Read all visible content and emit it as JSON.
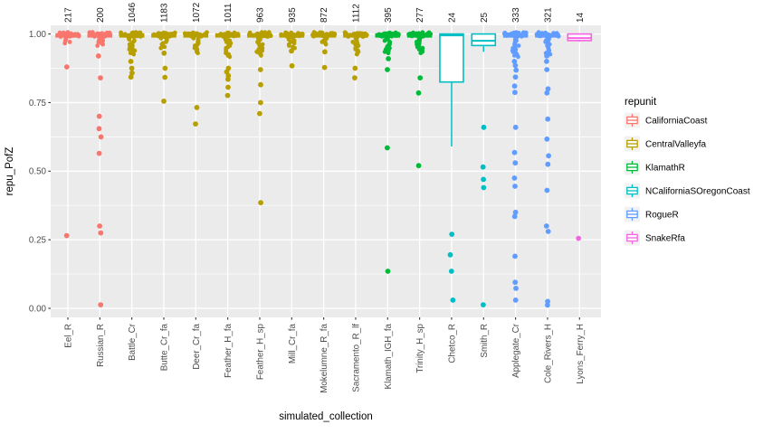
{
  "style": {
    "panel_bg": "#EBEBEB",
    "grid_color": "#FFFFFF",
    "axis_text_color": "#4D4D4D",
    "title_text_color": "#000000",
    "count_text_color": "#1A1A1A",
    "tick_color": "#333333",
    "legend_key_bg": "#F2F2F2",
    "box_fill": "#FFFFFF"
  },
  "chart_data": {
    "type": "boxplot",
    "title": "",
    "xlabel": "simulated_collection",
    "ylabel": "repu_PofZ",
    "ytick_labels": [
      "1.00",
      "0.75",
      "0.50",
      "0.25",
      "0.00"
    ],
    "ytick_values": [
      1.0,
      0.75,
      0.5,
      0.25,
      0.0
    ],
    "yminor_values": [
      0.875,
      0.625,
      0.375,
      0.125
    ],
    "ylim": [
      -0.033,
      1.032
    ],
    "grid": true,
    "legend_position": "right",
    "legend_title": "repunit",
    "repunits": [
      {
        "name": "CaliforniaCoast",
        "color": "#F8766D"
      },
      {
        "name": "CentralValleyfa",
        "color": "#B79F00"
      },
      {
        "name": "KlamathR",
        "color": "#00BA38"
      },
      {
        "name": "NCaliforniaSOregonCoast",
        "color": "#00BFC4"
      },
      {
        "name": "RogueR",
        "color": "#619CFF"
      },
      {
        "name": "SnakeRfa",
        "color": "#F564E2"
      }
    ],
    "columns": [
      {
        "label": "Eel_R",
        "count": 217,
        "repunit": "CaliforniaCoast",
        "box": {
          "lo": 0.988,
          "q1": 0.99,
          "med": 0.999,
          "q3": 1.0,
          "hi": 1.0
        },
        "cluster_to": 0.965,
        "outliers": [
          0.88,
          0.265
        ]
      },
      {
        "label": "Russian_R",
        "count": 200,
        "repunit": "CaliforniaCoast",
        "box": {
          "lo": 0.988,
          "q1": 0.99,
          "med": 0.999,
          "q3": 1.0,
          "hi": 1.0
        },
        "cluster_to": 0.955,
        "outliers": [
          0.92,
          0.84,
          0.7,
          0.655,
          0.625,
          0.565,
          0.3,
          0.275,
          0.013
        ]
      },
      {
        "label": "Battle_Cr",
        "count": 1046,
        "repunit": "CentralValleyfa",
        "box": {
          "lo": 0.988,
          "q1": 0.99,
          "med": 0.999,
          "q3": 1.0,
          "hi": 1.0
        },
        "cluster_to": 0.925,
        "outliers": [
          0.9,
          0.875,
          0.858,
          0.843
        ]
      },
      {
        "label": "Butte_Cr_fa",
        "count": 1183,
        "repunit": "CentralValleyfa",
        "box": {
          "lo": 0.988,
          "q1": 0.99,
          "med": 0.999,
          "q3": 1.0,
          "hi": 1.0
        },
        "cluster_to": 0.945,
        "outliers": [
          0.93,
          0.875,
          0.842,
          0.755
        ]
      },
      {
        "label": "Deer_Cr_fa",
        "count": 1072,
        "repunit": "CentralValleyfa",
        "box": {
          "lo": 0.988,
          "q1": 0.99,
          "med": 0.999,
          "q3": 1.0,
          "hi": 1.0
        },
        "cluster_to": 0.93,
        "outliers": [
          0.732,
          0.672
        ]
      },
      {
        "label": "Feather_H_fa",
        "count": 1011,
        "repunit": "CentralValleyfa",
        "box": {
          "lo": 0.988,
          "q1": 0.99,
          "med": 0.999,
          "q3": 1.0,
          "hi": 1.0
        },
        "cluster_to": 0.915,
        "outliers": [
          0.875,
          0.862,
          0.848,
          0.835,
          0.806,
          0.776
        ]
      },
      {
        "label": "Feather_H_sp",
        "count": 963,
        "repunit": "CentralValleyfa",
        "box": {
          "lo": 0.988,
          "q1": 0.99,
          "med": 0.999,
          "q3": 1.0,
          "hi": 1.0
        },
        "cluster_to": 0.92,
        "outliers": [
          0.87,
          0.815,
          0.75,
          0.71,
          0.385
        ]
      },
      {
        "label": "Mill_Cr_fa",
        "count": 935,
        "repunit": "CentralValleyfa",
        "box": {
          "lo": 0.988,
          "q1": 0.99,
          "med": 0.999,
          "q3": 1.0,
          "hi": 1.0
        },
        "cluster_to": 0.945,
        "outliers": [
          0.938,
          0.884
        ]
      },
      {
        "label": "Mokelumne_R_fa",
        "count": 872,
        "repunit": "CentralValleyfa",
        "box": {
          "lo": 0.988,
          "q1": 0.99,
          "med": 0.999,
          "q3": 1.0,
          "hi": 1.0
        },
        "cluster_to": 0.962,
        "outliers": [
          0.935,
          0.878
        ]
      },
      {
        "label": "Sacramento_R_lf",
        "count": 1112,
        "repunit": "CentralValleyfa",
        "box": {
          "lo": 0.988,
          "q1": 0.99,
          "med": 0.999,
          "q3": 1.0,
          "hi": 1.0
        },
        "cluster_to": 0.925,
        "outliers": [
          0.875,
          0.84
        ]
      },
      {
        "label": "Klamath_IGH_fa",
        "count": 395,
        "repunit": "KlamathR",
        "box": {
          "lo": 0.988,
          "q1": 0.99,
          "med": 0.999,
          "q3": 1.0,
          "hi": 1.0
        },
        "cluster_to": 0.93,
        "outliers": [
          0.91,
          0.87,
          0.585,
          0.135
        ]
      },
      {
        "label": "Trinity_H_sp",
        "count": 277,
        "repunit": "KlamathR",
        "box": {
          "lo": 0.988,
          "q1": 0.99,
          "med": 0.999,
          "q3": 1.0,
          "hi": 1.0
        },
        "cluster_to": 0.93,
        "outliers": [
          0.84,
          0.785,
          0.52
        ]
      },
      {
        "label": "Chetco_R",
        "count": 24,
        "repunit": "NCaliforniaSOregonCoast",
        "box": {
          "lo": 0.59,
          "q1": 0.825,
          "med": 0.995,
          "q3": 1.0,
          "hi": 1.0
        },
        "cluster_to": null,
        "outliers": [
          0.27,
          0.195,
          0.135,
          0.03
        ]
      },
      {
        "label": "Smith_R",
        "count": 25,
        "repunit": "NCaliforniaSOregonCoast",
        "box": {
          "lo": 0.935,
          "q1": 0.958,
          "med": 0.975,
          "q3": 1.0,
          "hi": 1.0
        },
        "cluster_to": null,
        "outliers": [
          0.66,
          0.515,
          0.47,
          0.44,
          0.013
        ]
      },
      {
        "label": "Applegate_Cr",
        "count": 333,
        "repunit": "RogueR",
        "box": {
          "lo": 0.988,
          "q1": 0.99,
          "med": 0.999,
          "q3": 1.0,
          "hi": 1.0
        },
        "cluster_to": 0.915,
        "outliers": [
          0.9,
          0.885,
          0.868,
          0.843,
          0.81,
          0.787,
          0.66,
          0.568,
          0.53,
          0.475,
          0.445,
          0.35,
          0.335,
          0.19,
          0.095,
          0.073,
          0.03
        ]
      },
      {
        "label": "Cole_Rivers_H",
        "count": 321,
        "repunit": "RogueR",
        "box": {
          "lo": 0.988,
          "q1": 0.99,
          "med": 0.999,
          "q3": 1.0,
          "hi": 1.0
        },
        "cluster_to": 0.925,
        "outliers": [
          0.92,
          0.9,
          0.87,
          0.8,
          0.785,
          0.69,
          0.617,
          0.556,
          0.525,
          0.43,
          0.3,
          0.28,
          0.025,
          0.012
        ]
      },
      {
        "label": "Lyons_Ferry_H",
        "count": 14,
        "repunit": "SnakeRfa",
        "box": {
          "lo": 0.972,
          "q1": 0.976,
          "med": 0.985,
          "q3": 1.0,
          "hi": 1.0
        },
        "cluster_to": null,
        "outliers": [
          0.255
        ]
      }
    ]
  }
}
